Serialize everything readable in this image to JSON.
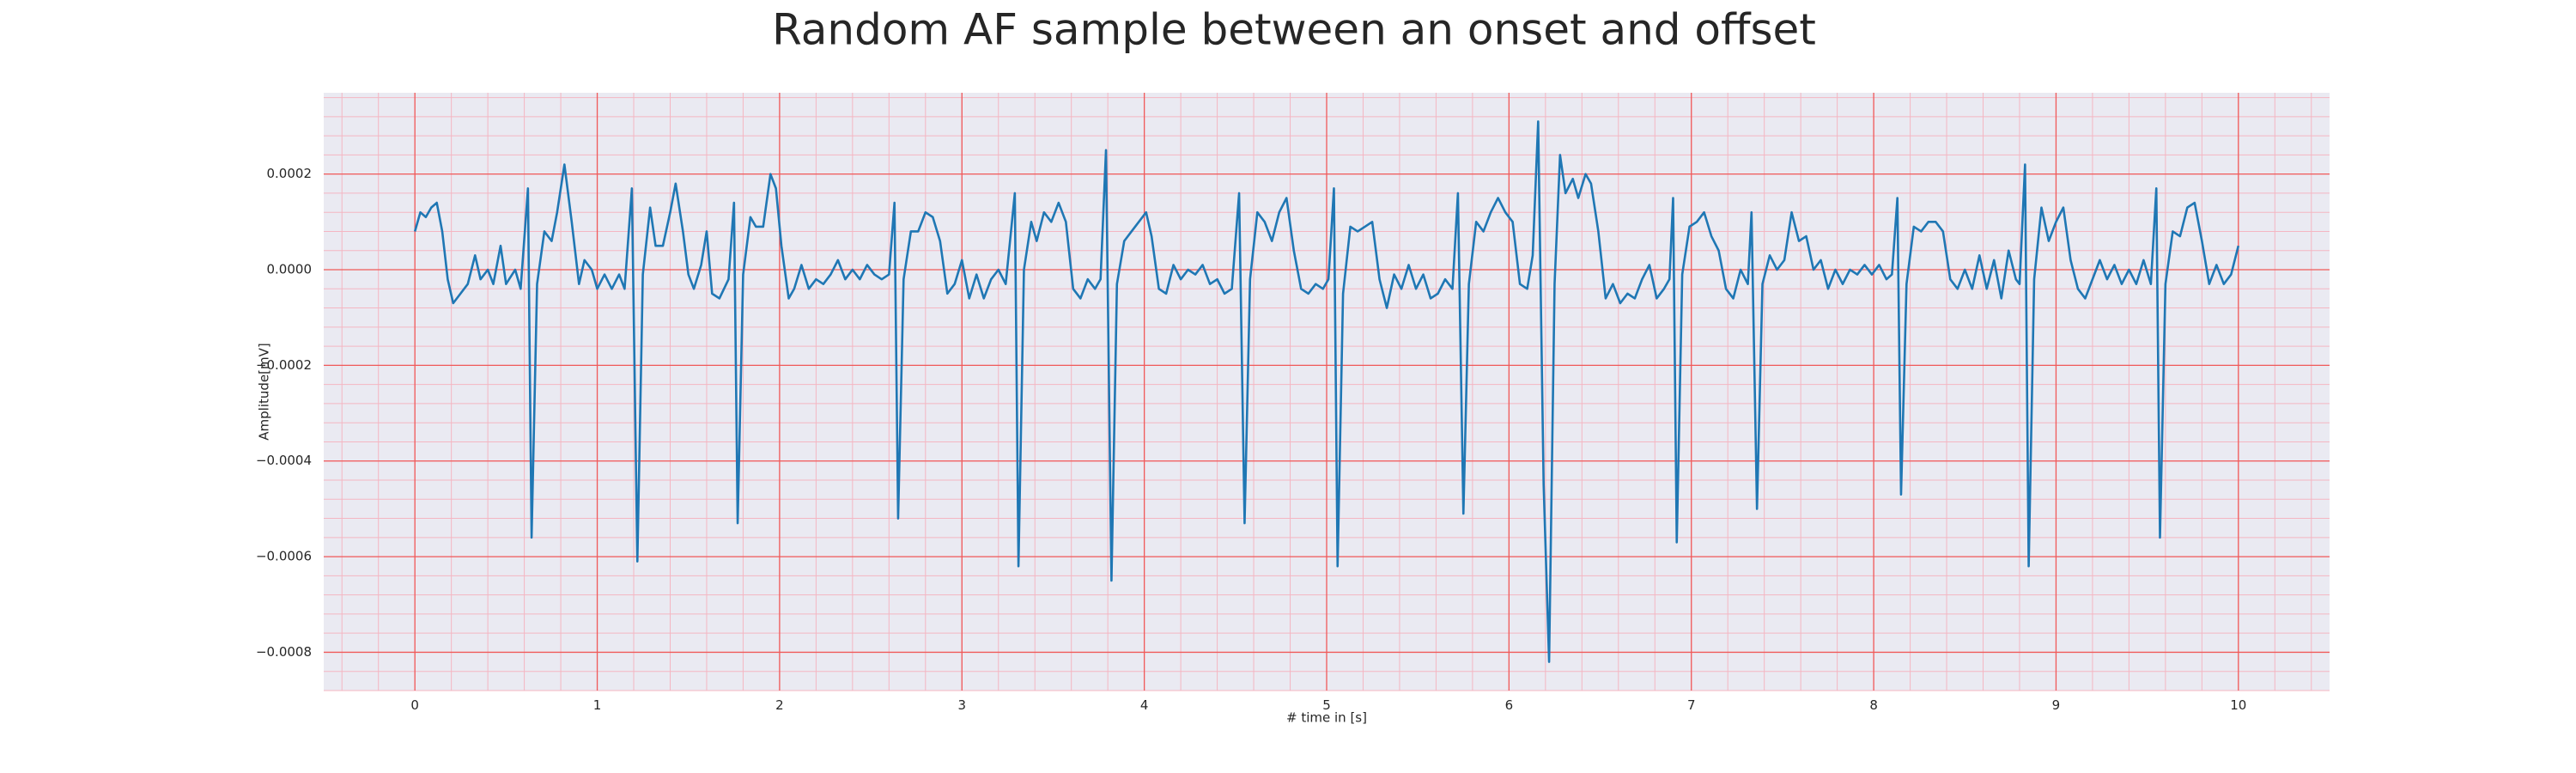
{
  "chart_data": {
    "type": "line",
    "title": "Random AF sample between an onset and offset",
    "xlabel": "# time in [s]",
    "ylabel": "Amplitude[mV]",
    "color": "#1f77b4",
    "grid": true,
    "xlim": [
      -0.5,
      10.5
    ],
    "ylim": [
      -0.00088,
      0.00037
    ],
    "xticks": [
      0,
      1,
      2,
      3,
      4,
      5,
      6,
      7,
      8,
      9,
      10
    ],
    "yticks": [
      {
        "value": -0.0008,
        "label": "−0.0008"
      },
      {
        "value": -0.0006,
        "label": "−0.0006"
      },
      {
        "value": -0.0004,
        "label": "−0.0004"
      },
      {
        "value": -0.0002,
        "label": "−0.0002"
      },
      {
        "value": 0,
        "label": "0.0000"
      },
      0.0002
    ],
    "x": [
      0,
      0.03,
      0.06,
      0.09,
      0.12,
      0.15,
      0.18,
      0.21,
      0.25,
      0.29,
      0.33,
      0.36,
      0.4,
      0.43,
      0.47,
      0.5,
      0.55,
      0.58,
      0.62,
      0.64,
      0.67,
      0.71,
      0.75,
      0.78,
      0.82,
      0.86,
      0.9,
      0.93,
      0.97,
      1.0,
      1.04,
      1.08,
      1.12,
      1.15,
      1.19,
      1.22,
      1.25,
      1.29,
      1.32,
      1.36,
      1.4,
      1.43,
      1.47,
      1.5,
      1.53,
      1.57,
      1.6,
      1.63,
      1.67,
      1.72,
      1.75,
      1.77,
      1.8,
      1.84,
      1.87,
      1.91,
      1.95,
      1.98,
      2.01,
      2.05,
      2.08,
      2.12,
      2.16,
      2.2,
      2.24,
      2.28,
      2.32,
      2.36,
      2.4,
      2.44,
      2.48,
      2.52,
      2.56,
      2.6,
      2.63,
      2.65,
      2.68,
      2.72,
      2.76,
      2.8,
      2.84,
      2.88,
      2.92,
      2.96,
      3.0,
      3.04,
      3.08,
      3.12,
      3.16,
      3.2,
      3.24,
      3.29,
      3.31,
      3.34,
      3.38,
      3.41,
      3.45,
      3.49,
      3.53,
      3.57,
      3.61,
      3.65,
      3.69,
      3.73,
      3.76,
      3.79,
      3.82,
      3.85,
      3.89,
      3.93,
      3.97,
      4.01,
      4.04,
      4.08,
      4.12,
      4.16,
      4.2,
      4.24,
      4.28,
      4.32,
      4.36,
      4.4,
      4.44,
      4.48,
      4.52,
      4.55,
      4.58,
      4.62,
      4.66,
      4.7,
      4.74,
      4.78,
      4.82,
      4.86,
      4.9,
      4.94,
      4.98,
      5.01,
      5.04,
      5.06,
      5.09,
      5.13,
      5.17,
      5.21,
      5.25,
      5.29,
      5.33,
      5.37,
      5.41,
      5.45,
      5.49,
      5.53,
      5.57,
      5.61,
      5.65,
      5.69,
      5.72,
      5.75,
      5.78,
      5.82,
      5.86,
      5.9,
      5.94,
      5.98,
      6.02,
      6.06,
      6.1,
      6.13,
      6.16,
      6.19,
      6.22,
      6.25,
      6.28,
      6.31,
      6.35,
      6.38,
      6.42,
      6.45,
      6.49,
      6.53,
      6.57,
      6.61,
      6.65,
      6.69,
      6.73,
      6.77,
      6.81,
      6.85,
      6.88,
      6.9,
      6.92,
      6.95,
      6.99,
      7.03,
      7.07,
      7.11,
      7.15,
      7.19,
      7.23,
      7.27,
      7.31,
      7.33,
      7.36,
      7.39,
      7.43,
      7.47,
      7.51,
      7.55,
      7.59,
      7.63,
      7.67,
      7.71,
      7.75,
      7.79,
      7.83,
      7.87,
      7.91,
      7.95,
      7.99,
      8.03,
      8.07,
      8.1,
      8.13,
      8.15,
      8.18,
      8.22,
      8.26,
      8.3,
      8.34,
      8.38,
      8.42,
      8.46,
      8.5,
      8.54,
      8.58,
      8.62,
      8.66,
      8.7,
      8.74,
      8.78,
      8.8,
      8.83,
      8.85,
      8.88,
      8.92,
      8.96,
      9.0,
      9.04,
      9.08,
      9.12,
      9.16,
      9.2,
      9.24,
      9.28,
      9.32,
      9.36,
      9.4,
      9.44,
      9.48,
      9.52,
      9.55,
      9.57,
      9.6,
      9.64,
      9.68,
      9.72,
      9.76,
      9.8,
      9.84,
      9.88,
      9.92,
      9.96,
      10.0
    ],
    "values": [
      8e-05,
      0.00012,
      0.00011,
      0.00013,
      0.00014,
      8e-05,
      -2e-05,
      -7e-05,
      -5e-05,
      -3e-05,
      3e-05,
      -2e-05,
      0.0,
      -3e-05,
      5e-05,
      -3e-05,
      0.0,
      -4e-05,
      0.00017,
      -0.00056,
      -3e-05,
      8e-05,
      6e-05,
      0.00012,
      0.00022,
      0.0001,
      -3e-05,
      2e-05,
      0.0,
      -4e-05,
      -1e-05,
      -4e-05,
      -1e-05,
      -4e-05,
      0.00017,
      -0.00061,
      -1e-05,
      0.00013,
      5e-05,
      5e-05,
      0.00012,
      0.00018,
      8e-05,
      -1e-05,
      -4e-05,
      1e-05,
      8e-05,
      -5e-05,
      -6e-05,
      -2e-05,
      0.00014,
      -0.00053,
      -1e-05,
      0.00011,
      9e-05,
      9e-05,
      0.0002,
      0.00017,
      5e-05,
      -6e-05,
      -4e-05,
      1e-05,
      -4e-05,
      -2e-05,
      -3e-05,
      -1e-05,
      2e-05,
      -2e-05,
      0.0,
      -2e-05,
      1e-05,
      -1e-05,
      -2e-05,
      -1e-05,
      0.00014,
      -0.00052,
      -2e-05,
      8e-05,
      8e-05,
      0.00012,
      0.00011,
      6e-05,
      -5e-05,
      -3e-05,
      2e-05,
      -6e-05,
      -1e-05,
      -6e-05,
      -2e-05,
      0.0,
      -3e-05,
      0.00016,
      -0.00062,
      0.0,
      0.0001,
      6e-05,
      0.00012,
      0.0001,
      0.00014,
      0.0001,
      -4e-05,
      -6e-05,
      -2e-05,
      -4e-05,
      -2e-05,
      0.00025,
      -0.00065,
      -3e-05,
      6e-05,
      8e-05,
      0.0001,
      0.00012,
      7e-05,
      -4e-05,
      -5e-05,
      1e-05,
      -2e-05,
      0.0,
      -1e-05,
      1e-05,
      -3e-05,
      -2e-05,
      -5e-05,
      -4e-05,
      0.00016,
      -0.00053,
      -2e-05,
      0.00012,
      0.0001,
      6e-05,
      0.00012,
      0.00015,
      4e-05,
      -4e-05,
      -5e-05,
      -3e-05,
      -4e-05,
      -2e-05,
      0.00017,
      -0.00062,
      -5e-05,
      9e-05,
      8e-05,
      9e-05,
      0.0001,
      -2e-05,
      -8e-05,
      -1e-05,
      -4e-05,
      1e-05,
      -4e-05,
      -1e-05,
      -6e-05,
      -5e-05,
      -2e-05,
      -4e-05,
      0.00016,
      -0.00051,
      -3e-05,
      0.0001,
      8e-05,
      0.00012,
      0.00015,
      0.00012,
      0.0001,
      -3e-05,
      -4e-05,
      3e-05,
      0.00031,
      -0.00045,
      -0.00082,
      -3e-05,
      0.00024,
      0.00016,
      0.00019,
      0.00015,
      0.0002,
      0.00018,
      8e-05,
      -6e-05,
      -3e-05,
      -7e-05,
      -5e-05,
      -6e-05,
      -2e-05,
      1e-05,
      -6e-05,
      -4e-05,
      -2e-05,
      0.00015,
      -0.00057,
      -1e-05,
      9e-05,
      0.0001,
      0.00012,
      7e-05,
      4e-05,
      -4e-05,
      -6e-05,
      0.0,
      -3e-05,
      0.00012,
      -0.0005,
      -3e-05,
      3e-05,
      0.0,
      2e-05,
      0.00012,
      6e-05,
      7e-05,
      0.0,
      2e-05,
      -4e-05,
      0.0,
      -3e-05,
      0.0,
      -1e-05,
      1e-05,
      -1e-05,
      1e-05,
      -2e-05,
      -1e-05,
      0.00015,
      -0.00047,
      -3e-05,
      9e-05,
      8e-05,
      0.0001,
      0.0001,
      8e-05,
      -2e-05,
      -4e-05,
      0.0,
      -4e-05,
      3e-05,
      -4e-05,
      2e-05,
      -6e-05,
      4e-05,
      -2e-05,
      -3e-05,
      0.00022,
      -0.00062,
      -2e-05,
      0.00013,
      6e-05,
      0.0001,
      0.00013,
      2e-05,
      -4e-05,
      -6e-05,
      -2e-05,
      2e-05,
      -2e-05,
      1e-05,
      -3e-05,
      0.0,
      -3e-05,
      2e-05,
      -3e-05,
      0.00017,
      -0.00056,
      -3e-05,
      8e-05,
      7e-05,
      0.00013,
      0.00014,
      6e-05,
      -3e-05,
      1e-05,
      -3e-05,
      -1e-05,
      5e-05
    ]
  }
}
